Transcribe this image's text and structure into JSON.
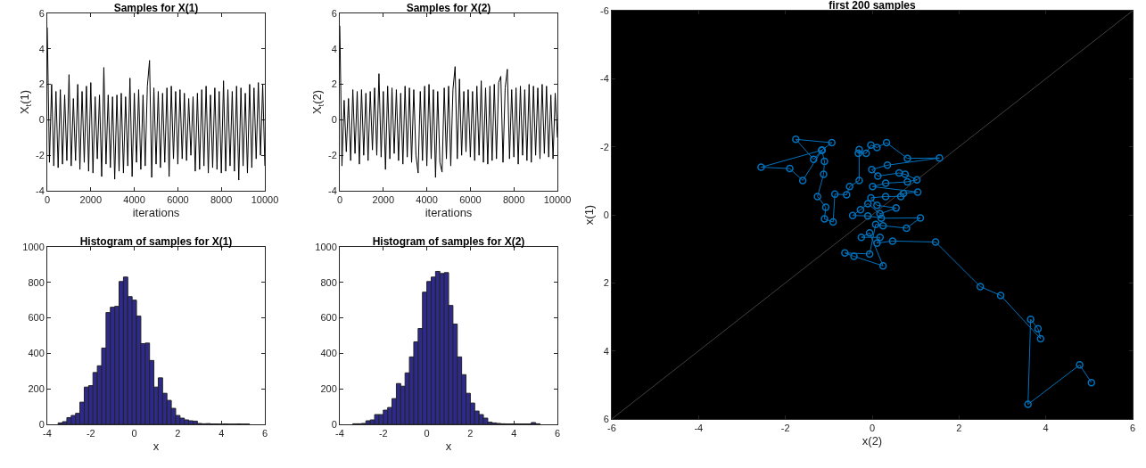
{
  "chart_data": [
    {
      "type": "line",
      "title": "Samples for X(1)",
      "xlabel": "iterations",
      "ylabel": "X$_{t}$(1)",
      "xlim": [
        0,
        10000
      ],
      "xticks": [
        0,
        2000,
        4000,
        6000,
        8000,
        10000
      ],
      "ylim": [
        -4,
        6
      ],
      "yticks": [
        -4,
        -2,
        0,
        2,
        4,
        6
      ],
      "x": [
        0,
        100,
        200,
        300,
        400,
        500,
        600,
        700,
        800,
        900,
        1000,
        1100,
        1200,
        1300,
        1400,
        1500,
        1600,
        1700,
        1800,
        1900,
        2000,
        2100,
        2200,
        2300,
        2400,
        2500,
        2600,
        2700,
        2800,
        2900,
        3000,
        3100,
        3200,
        3300,
        3400,
        3500,
        3600,
        3700,
        3800,
        3900,
        4000,
        4100,
        4200,
        4300,
        4400,
        4500,
        4600,
        4700,
        4800,
        4900,
        5000,
        5100,
        5200,
        5300,
        5400,
        5500,
        5600,
        5700,
        5800,
        5900,
        6000,
        6100,
        6200,
        6300,
        6400,
        6500,
        6600,
        6700,
        6800,
        6900,
        7000,
        7100,
        7200,
        7300,
        7400,
        7500,
        7600,
        7700,
        7800,
        7900,
        8000,
        8100,
        8200,
        8300,
        8400,
        8500,
        8600,
        8700,
        8800,
        8900,
        9000,
        9100,
        9200,
        9300,
        9400,
        9500,
        9600,
        9700,
        9800,
        9900,
        10000
      ],
      "series": [
        {
          "color": "#000000",
          "values": [
            5.2,
            -2.4,
            2.0,
            -2.6,
            1.6,
            -2.7,
            1.7,
            -2.5,
            1.4,
            -2.3,
            2.55,
            -2.6,
            1.2,
            -2.3,
            2.0,
            -2.8,
            1.6,
            -2.4,
            1.9,
            -2.9,
            2.1,
            -3.0,
            1.3,
            -2.2,
            1.4,
            -3.2,
            2.95,
            -2.5,
            1.4,
            -2.7,
            1.3,
            -3.35,
            1.4,
            -2.9,
            1.5,
            -3.0,
            1.3,
            -2.6,
            2.35,
            -3.2,
            1.5,
            -2.4,
            1.7,
            -2.8,
            1.4,
            -2.6,
            1.9,
            3.35,
            -3.25,
            1.8,
            -2.5,
            1.6,
            -2.7,
            1.5,
            -2.4,
            1.8,
            -3.2,
            1.9,
            -2.2,
            1.6,
            -2.5,
            1.7,
            -2.2,
            1.5,
            -2.3,
            1.2,
            -2.0,
            1.3,
            -2.9,
            1.5,
            -2.8,
            1.7,
            -2.6,
            1.9,
            -3.0,
            1.4,
            -2.7,
            1.8,
            -2.8,
            1.6,
            -3.0,
            2.2,
            -2.9,
            1.7,
            -2.6,
            1.6,
            -2.9,
            1.9,
            -3.4,
            1.8,
            -2.6,
            1.5,
            -3.0,
            2.0,
            -2.7,
            1.8,
            -2.2,
            2.1,
            -2.0,
            2.0,
            -2.6
          ]
        }
      ]
    },
    {
      "type": "line",
      "title": "Samples for X(2)",
      "xlabel": "iterations",
      "ylabel": "X$_{t}$(2)",
      "xlim": [
        0,
        10000
      ],
      "xticks": [
        0,
        2000,
        4000,
        6000,
        8000,
        10000
      ],
      "ylim": [
        -4,
        6
      ],
      "yticks": [
        -4,
        -2,
        0,
        2,
        4,
        6
      ],
      "x": [
        0,
        100,
        200,
        300,
        400,
        500,
        600,
        700,
        800,
        900,
        1000,
        1100,
        1200,
        1300,
        1400,
        1500,
        1600,
        1700,
        1800,
        1900,
        2000,
        2100,
        2200,
        2300,
        2400,
        2500,
        2600,
        2700,
        2800,
        2900,
        3000,
        3100,
        3200,
        3300,
        3400,
        3500,
        3600,
        3700,
        3800,
        3900,
        4000,
        4100,
        4200,
        4300,
        4400,
        4500,
        4600,
        4700,
        4800,
        4900,
        5000,
        5100,
        5200,
        5300,
        5400,
        5500,
        5600,
        5700,
        5800,
        5900,
        6000,
        6100,
        6200,
        6300,
        6400,
        6500,
        6600,
        6700,
        6800,
        6900,
        7000,
        7100,
        7200,
        7300,
        7400,
        7500,
        7600,
        7700,
        7800,
        7900,
        8000,
        8100,
        8200,
        8300,
        8400,
        8500,
        8600,
        8700,
        8800,
        8900,
        9000,
        9100,
        9200,
        9300,
        9400,
        9500,
        9600,
        9700,
        9800,
        9900,
        10000
      ],
      "series": [
        {
          "color": "#000000",
          "values": [
            5.3,
            -2.6,
            1.1,
            -1.8,
            1.2,
            -2.3,
            1.7,
            -1.9,
            1.6,
            -2.5,
            1.7,
            -2.0,
            1.5,
            -2.3,
            1.6,
            -1.7,
            1.8,
            -2.0,
            2.6,
            -2.1,
            1.6,
            -2.8,
            1.9,
            -2.2,
            1.8,
            -1.9,
            1.7,
            -2.3,
            1.5,
            -2.5,
            1.9,
            -2.1,
            1.8,
            -2.4,
            1.7,
            -2.0,
            -3.0,
            1.6,
            -2.3,
            1.9,
            -2.6,
            2.0,
            -2.2,
            1.7,
            -3.25,
            1.6,
            -2.4,
            -2.95,
            1.8,
            -2.2,
            1.9,
            -2.6,
            1.7,
            3.0,
            -2.2,
            2.3,
            -2.0,
            1.6,
            -1.8,
            1.7,
            -2.1,
            1.6,
            -2.3,
            1.9,
            -2.0,
            2.2,
            -2.4,
            1.8,
            -2.5,
            1.9,
            -2.3,
            2.0,
            -2.2,
            2.1,
            2.45,
            -2.4,
            1.8,
            2.85,
            -2.2,
            1.7,
            -2.1,
            1.8,
            -2.5,
            1.9,
            -2.0,
            1.7,
            -2.3,
            2.0,
            -2.4,
            1.9,
            -2.0,
            1.8,
            -2.2,
            2.0,
            -1.9,
            1.9,
            -2.1,
            1.4,
            -2.2,
            1.5,
            -1.0
          ]
        }
      ]
    },
    {
      "type": "histogram",
      "title": "Histogram of samples for X(1)",
      "xlabel": "x",
      "xlim": [
        -4,
        6
      ],
      "xticks": [
        -4,
        -2,
        0,
        2,
        4,
        6
      ],
      "ylim": [
        0,
        1000
      ],
      "yticks": [
        0,
        200,
        400,
        600,
        800,
        1000
      ],
      "color": "#2e2a8c",
      "bins": [
        -3.5,
        -3.3,
        -3.1,
        -2.9,
        -2.7,
        -2.5,
        -2.3,
        -2.1,
        -1.9,
        -1.7,
        -1.5,
        -1.3,
        -1.1,
        -0.9,
        -0.7,
        -0.5,
        -0.3,
        -0.1,
        0.1,
        0.3,
        0.5,
        0.7,
        0.9,
        1.1,
        1.3,
        1.5,
        1.7,
        1.9,
        2.1,
        2.3,
        2.5,
        2.7,
        2.9,
        3.1,
        3.3,
        3.5,
        3.7,
        3.9,
        4.1,
        4.3,
        4.5,
        4.7,
        4.9,
        5.1,
        5.3
      ],
      "values": [
        8,
        15,
        38,
        50,
        62,
        125,
        210,
        218,
        292,
        330,
        430,
        630,
        660,
        665,
        805,
        830,
        720,
        700,
        610,
        455,
        458,
        360,
        210,
        262,
        175,
        135,
        90,
        50,
        35,
        25,
        20,
        18,
        5,
        3,
        4,
        2,
        2,
        1,
        2,
        1,
        1,
        2,
        1,
        1
      ]
    },
    {
      "type": "histogram",
      "title": "Histogram of samples for X(2)",
      "xlabel": "x",
      "xlim": [
        -4,
        6
      ],
      "xticks": [
        -4,
        -2,
        0,
        2,
        4,
        6
      ],
      "ylim": [
        0,
        1000
      ],
      "yticks": [
        0,
        200,
        400,
        600,
        800,
        1000
      ],
      "color": "#2e2a8c",
      "bins": [
        -3.4,
        -3.2,
        -3.0,
        -2.8,
        -2.6,
        -2.4,
        -2.2,
        -2.0,
        -1.8,
        -1.6,
        -1.4,
        -1.2,
        -1.0,
        -0.8,
        -0.6,
        -0.4,
        -0.2,
        0.0,
        0.2,
        0.4,
        0.6,
        0.8,
        1.0,
        1.2,
        1.4,
        1.6,
        1.8,
        2.0,
        2.2,
        2.4,
        2.6,
        2.8,
        3.0,
        3.2,
        3.4,
        3.6,
        3.8,
        4.0,
        4.2,
        4.4,
        4.6,
        4.8,
        5.0,
        5.2
      ],
      "values": [
        3,
        3,
        5,
        20,
        25,
        55,
        55,
        80,
        95,
        145,
        230,
        215,
        290,
        380,
        465,
        540,
        745,
        805,
        830,
        862,
        850,
        855,
        670,
        565,
        380,
        280,
        175,
        120,
        75,
        55,
        35,
        12,
        8,
        5,
        3,
        2,
        2,
        2,
        2,
        2,
        2,
        10,
        3
      ]
    },
    {
      "type": "line",
      "title": "first 200 samples",
      "xlabel": "x(2)",
      "ylabel": "x(1)",
      "xlim": [
        -6,
        6
      ],
      "xticks": [
        -6,
        -4,
        -2,
        0,
        2,
        4,
        6
      ],
      "ylim": [
        6,
        -6
      ],
      "yticks": [
        -6,
        -4,
        -2,
        0,
        2,
        4,
        6
      ],
      "series": [
        {
          "color": "#808080",
          "marker": "none",
          "x": [
            -6,
            6
          ],
          "values": [
            6,
            -6
          ]
        },
        {
          "color": "#0072bd",
          "marker": "circle",
          "x": [
            5.05,
            4.78,
            3.59,
            3.65,
            3.82,
            3.88,
            2.96,
            2.49,
            1.46,
            0.47,
            0.11,
            0.18,
            -0.25,
            -0.06,
            0.25,
            -0.42,
            -0.63,
            -0.06,
            0.08,
            0.25,
            0.79,
            1.11,
            0.21,
            -0.1,
            -0.45,
            -0.27,
            -0.1,
            0.18,
            0.55,
            0.11,
            -0.03,
            0.31,
            0.66,
            0.72,
            1.05,
            0.01,
            0.31,
            0.81,
            1.03,
            0.76,
            0.62,
            0.13,
            -0.01,
            0.35,
            1.55,
            0.81,
            0.33,
            0.11,
            -0.03,
            -0.14,
            -0.32,
            -0.3,
            -0.3,
            -0.52,
            -0.59,
            -0.86,
            -0.9,
            -1.1,
            -1.07,
            -1.26,
            -1.12,
            -1.1,
            -1.16,
            -1.6,
            -1.9,
            -2.56,
            -1.16,
            -1.35,
            -1.76,
            -0.93,
            -1.16
          ],
          "values": [
            4.93,
            4.41,
            5.57,
            3.07,
            3.35,
            3.64,
            2.37,
            2.11,
            0.8,
            0.77,
            0.83,
            0.66,
            0.66,
            0.53,
            1.5,
            1.22,
            1.12,
            1.15,
            0.28,
            0.32,
            0.39,
            0.09,
            0.1,
            0.03,
            0.02,
            -0.15,
            -0.33,
            -0.03,
            -0.2,
            -0.28,
            -0.5,
            -0.54,
            -0.54,
            -0.63,
            -0.67,
            -0.83,
            -0.93,
            -0.97,
            -1.03,
            -1.19,
            -1.23,
            -1.14,
            -1.33,
            -1.46,
            -1.67,
            -1.66,
            -2.12,
            -1.98,
            -2.05,
            -1.81,
            -1.81,
            -1.92,
            -1.01,
            -0.83,
            -0.59,
            -0.61,
            0.21,
            0.12,
            -0.22,
            -0.54,
            -1.19,
            -1.57,
            -1.9,
            -1.01,
            -1.36,
            -1.4,
            -1.9,
            -1.63,
            -2.22,
            -2.12,
            -1.9
          ]
        }
      ]
    }
  ]
}
